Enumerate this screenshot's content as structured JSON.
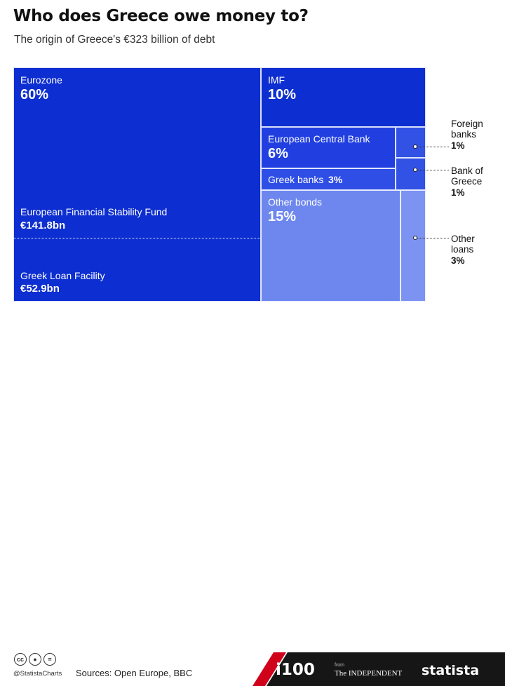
{
  "header": {
    "title": "Who does Greece owe money to?",
    "subtitle": "The origin of Greece's €323 billion of debt"
  },
  "chart_data": {
    "type": "treemap",
    "total_label": "€323 billion",
    "items": [
      {
        "name": "Eurozone",
        "percent": 60,
        "label": "60%",
        "color": "#0d2ed0",
        "children": [
          {
            "name": "European Financial Stability Fund",
            "value_label": "€141.8bn",
            "value_bn": 141.8
          },
          {
            "name": "Greek Loan Facility",
            "value_label": "€52.9bn",
            "value_bn": 52.9
          }
        ]
      },
      {
        "name": "IMF",
        "percent": 10,
        "label": "10%",
        "color": "#0d2ed0"
      },
      {
        "name": "European Central Bank",
        "percent": 6,
        "label": "6%",
        "color": "#213fe0"
      },
      {
        "name": "Greek banks",
        "percent": 3,
        "label": "3%",
        "color": "#2f4ee6"
      },
      {
        "name": "Other bonds",
        "percent": 15,
        "label": "15%",
        "color": "#6d87ef"
      },
      {
        "name": "Foreign banks",
        "percent": 1,
        "label": "1%",
        "color": "#3152e4"
      },
      {
        "name": "Bank of Greece",
        "percent": 1,
        "label": "1%",
        "color": "#3152e4"
      },
      {
        "name": "Other loans",
        "percent": 3,
        "label": "3%",
        "color": "#7c93f1"
      }
    ],
    "outside_labels": {
      "foreign_banks": [
        "Foreign",
        "banks"
      ],
      "bank_of_greece": [
        "Bank of",
        "Greece"
      ],
      "other_loans": [
        "Other",
        "loans"
      ]
    }
  },
  "footer": {
    "license_icons": [
      "cc",
      "by",
      "="
    ],
    "handle": "@StatistaCharts",
    "sources": "Sources: Open Europe, BBC",
    "brand_i100": "i100",
    "from": "from",
    "independent": "The INDEPENDENT",
    "statista": "statista"
  }
}
